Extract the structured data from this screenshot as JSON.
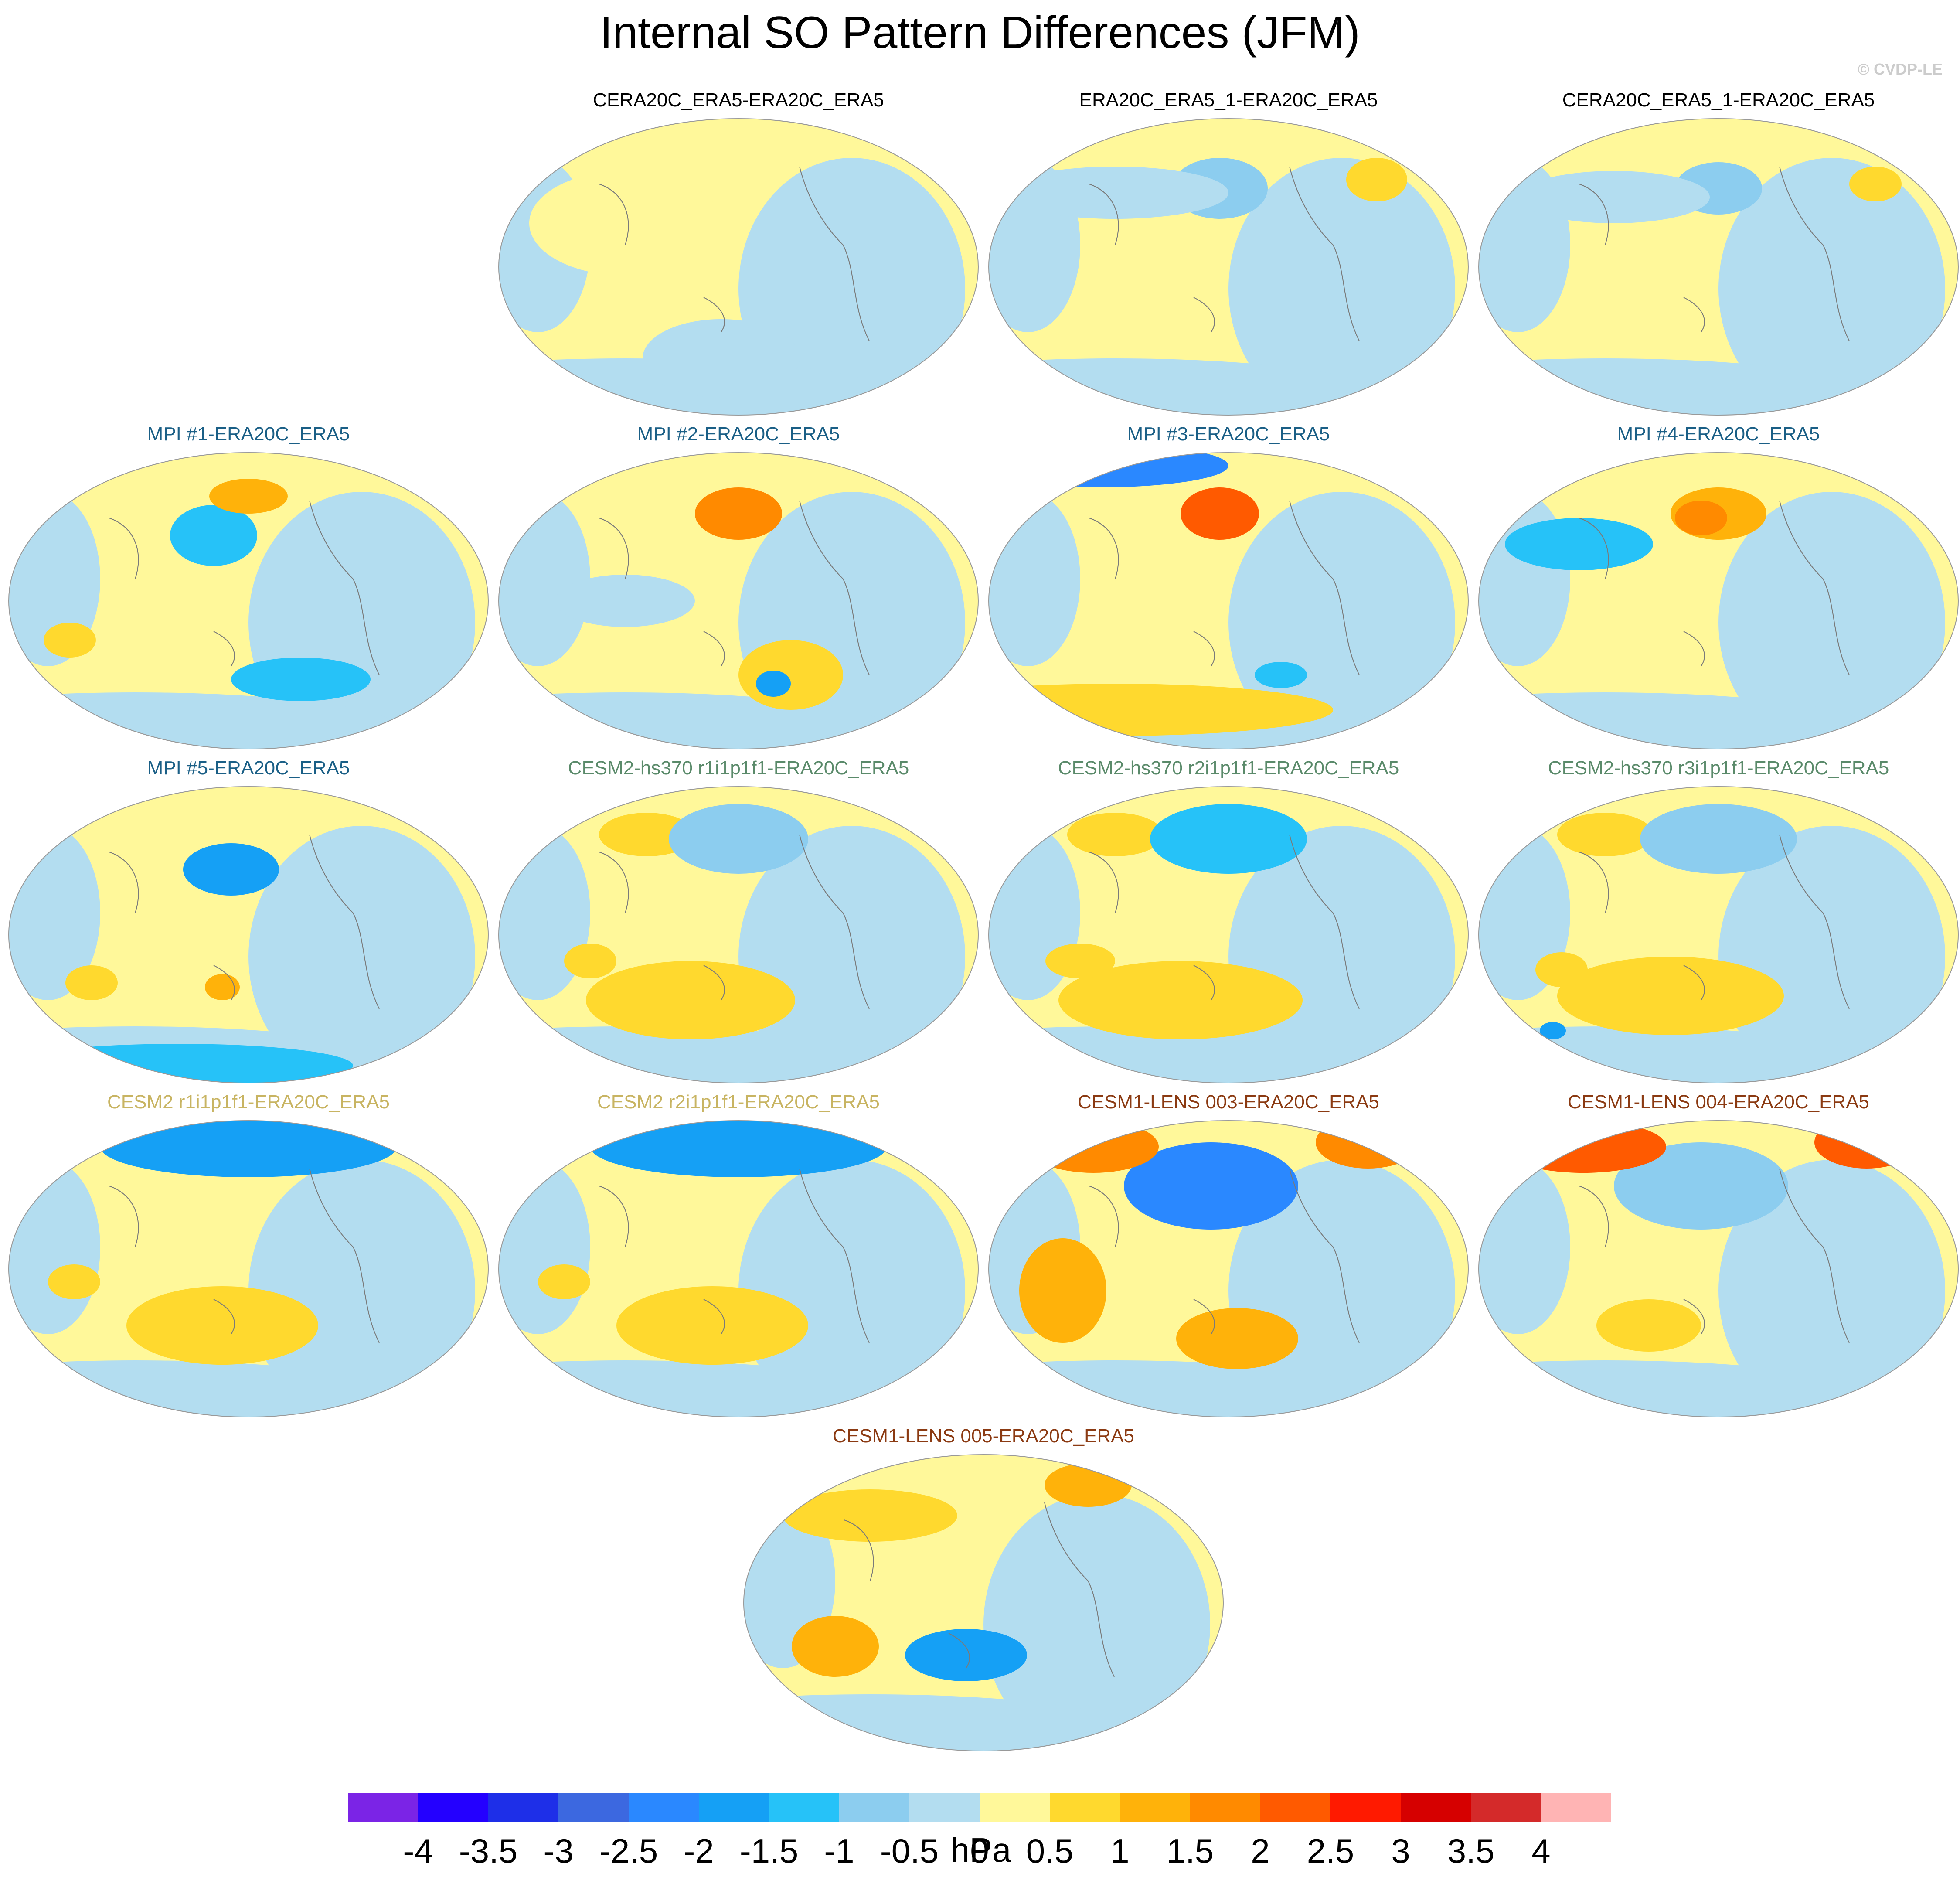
{
  "title": "Internal SO Pattern Differences (JFM)",
  "watermark": "© CVDP-LE",
  "colors": {
    "ocean_blue": "#b3ddf0",
    "land_yellow": "#fff89a",
    "title_black": "#000000",
    "title_mpi": "#1a5f86",
    "title_cesm2hs": "#5a8a6a",
    "title_cesm2": "#c8b462",
    "title_cesm1": "#8b3a12"
  },
  "panels": [
    {
      "label": "CERA20C_ERA5-ERA20C_ERA5",
      "group": "obs"
    },
    {
      "label": "ERA20C_ERA5_1-ERA20C_ERA5",
      "group": "obs"
    },
    {
      "label": "CERA20C_ERA5_1-ERA20C_ERA5",
      "group": "obs"
    },
    {
      "label": "MPI #1-ERA20C_ERA5",
      "group": "mpi"
    },
    {
      "label": "MPI #2-ERA20C_ERA5",
      "group": "mpi"
    },
    {
      "label": "MPI #3-ERA20C_ERA5",
      "group": "mpi"
    },
    {
      "label": "MPI #4-ERA20C_ERA5",
      "group": "mpi"
    },
    {
      "label": "MPI #5-ERA20C_ERA5",
      "group": "mpi"
    },
    {
      "label": "CESM2-hs370 r1i1p1f1-ERA20C_ERA5",
      "group": "cesm2hs"
    },
    {
      "label": "CESM2-hs370 r2i1p1f1-ERA20C_ERA5",
      "group": "cesm2hs"
    },
    {
      "label": "CESM2-hs370 r3i1p1f1-ERA20C_ERA5",
      "group": "cesm2hs"
    },
    {
      "label": "CESM2 r1i1p1f1-ERA20C_ERA5",
      "group": "cesm2"
    },
    {
      "label": "CESM2 r2i1p1f1-ERA20C_ERA5",
      "group": "cesm2"
    },
    {
      "label": "CESM1-LENS 003-ERA20C_ERA5",
      "group": "cesm1"
    },
    {
      "label": "CESM1-LENS 004-ERA20C_ERA5",
      "group": "cesm1"
    },
    {
      "label": "CESM1-LENS 005-ERA20C_ERA5",
      "group": "cesm1"
    }
  ],
  "colorbar": {
    "unit": "hPa",
    "labels": [
      "-4",
      "-3.5",
      "-3",
      "-2.5",
      "-2",
      "-1.5",
      "-1",
      "-0.5",
      "0",
      "0.5",
      "1",
      "1.5",
      "2",
      "2.5",
      "3",
      "3.5",
      "4"
    ],
    "colors": [
      "#7b24e6",
      "#2400ff",
      "#1e2fe8",
      "#3c68e0",
      "#2a88ff",
      "#15a0f5",
      "#26c2f8",
      "#8ccdef",
      "#b3ddf0",
      "#fff89a",
      "#ffd92e",
      "#ffb20a",
      "#ff8a00",
      "#ff5a00",
      "#ff1a00",
      "#d60000",
      "#d42a2a",
      "#ffb4b4"
    ]
  }
}
